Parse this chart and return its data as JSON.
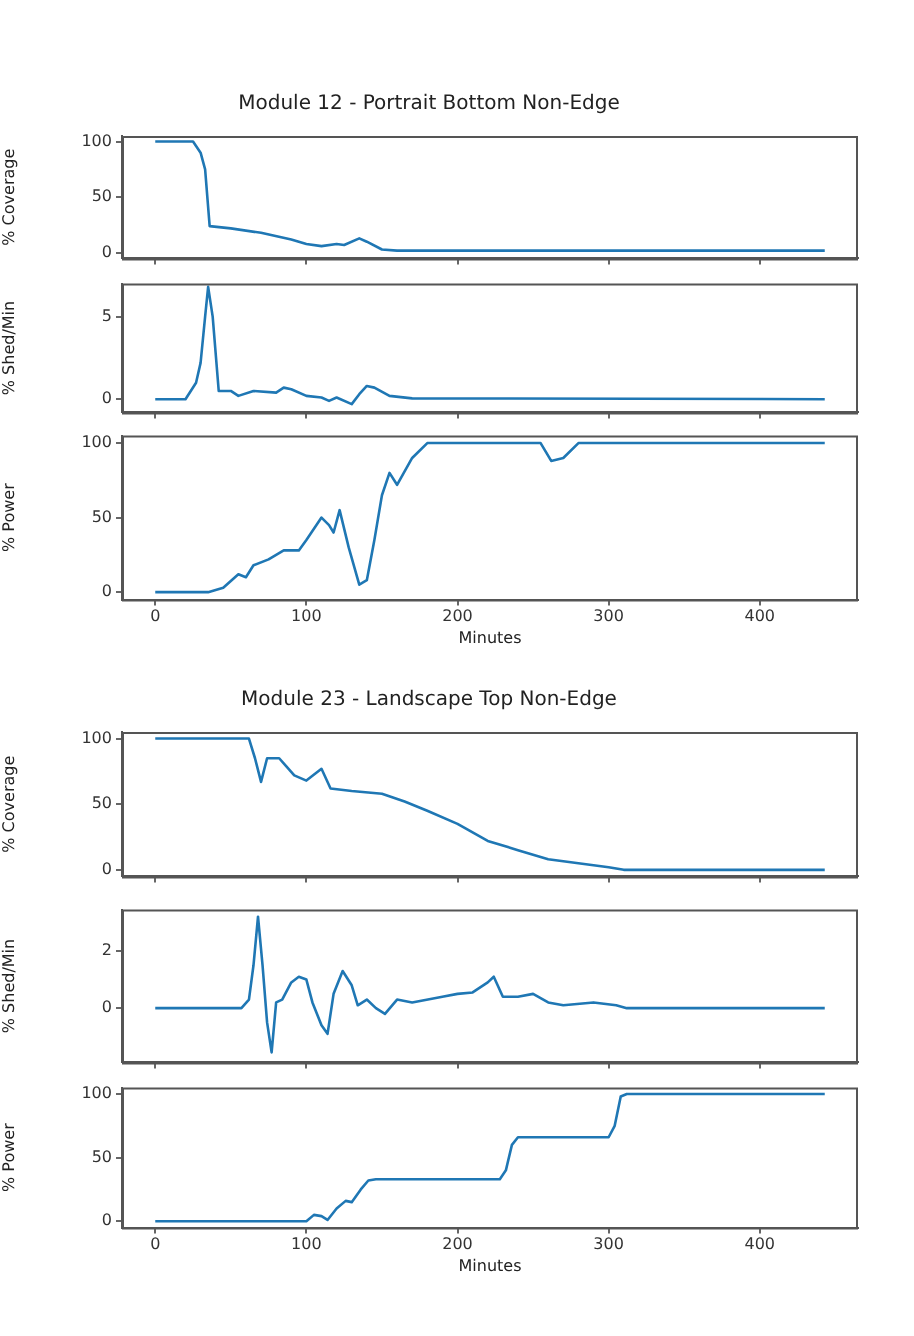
{
  "chart_data": [
    {
      "type": "line",
      "title": "Module 12 - Portrait Bottom Non-Edge",
      "ylabel": "% Coverage",
      "color": "#1f77b4",
      "xlim": [
        -22,
        465
      ],
      "xticks": [
        0,
        100,
        200,
        300,
        400
      ],
      "ylim": [
        -5,
        105
      ],
      "yticks": [
        0,
        50,
        100
      ],
      "tick_labels": "y",
      "x": [
        0,
        25,
        30,
        33,
        36,
        50,
        70,
        90,
        100,
        110,
        120,
        125,
        135,
        140,
        150,
        160,
        200,
        300,
        443
      ],
      "values": [
        100,
        100,
        90,
        75,
        24,
        22,
        18,
        12,
        8,
        6,
        8,
        7,
        13,
        10,
        3,
        2,
        2,
        2,
        2
      ]
    },
    {
      "type": "line",
      "ylabel": "% Shed/Min",
      "color": "#1f77b4",
      "xlim": [
        -22,
        465
      ],
      "xticks": [
        0,
        100,
        200,
        300,
        400
      ],
      "ylim": [
        -0.8,
        7
      ],
      "yticks": [
        0,
        5
      ],
      "tick_labels": "y",
      "x": [
        0,
        20,
        27,
        30,
        33,
        35,
        38,
        42,
        50,
        55,
        65,
        80,
        85,
        90,
        100,
        110,
        115,
        120,
        130,
        135,
        140,
        145,
        155,
        170,
        443
      ],
      "values": [
        0,
        0,
        1,
        2.2,
        5,
        6.8,
        5,
        0.5,
        0.5,
        0.2,
        0.5,
        0.4,
        0.7,
        0.6,
        0.2,
        0.1,
        -0.1,
        0.1,
        -0.3,
        0.3,
        0.8,
        0.7,
        0.2,
        0.05,
        0
      ]
    },
    {
      "type": "line",
      "ylabel": "% Power",
      "xlabel": "Minutes",
      "color": "#1f77b4",
      "xlim": [
        -22,
        465
      ],
      "xticks": [
        0,
        100,
        200,
        300,
        400
      ],
      "ylim": [
        -5,
        105
      ],
      "yticks": [
        0,
        50,
        100
      ],
      "x": [
        0,
        35,
        45,
        55,
        60,
        65,
        75,
        85,
        95,
        100,
        110,
        115,
        118,
        122,
        128,
        135,
        140,
        145,
        150,
        155,
        160,
        170,
        180,
        255,
        262,
        270,
        280,
        443
      ],
      "values": [
        0,
        0,
        3,
        12,
        10,
        18,
        22,
        28,
        28,
        35,
        50,
        45,
        40,
        55,
        30,
        5,
        8,
        35,
        65,
        80,
        72,
        90,
        100,
        100,
        88,
        90,
        100,
        100
      ]
    },
    {
      "type": "line",
      "title": "Module 23 - Landscape Top Non-Edge",
      "ylabel": "% Coverage",
      "color": "#1f77b4",
      "xlim": [
        -22,
        465
      ],
      "xticks": [
        0,
        100,
        200,
        300,
        400
      ],
      "ylim": [
        -5,
        105
      ],
      "yticks": [
        0,
        50,
        100
      ],
      "tick_labels": "y",
      "x": [
        0,
        62,
        66,
        70,
        74,
        82,
        92,
        100,
        110,
        116,
        130,
        150,
        165,
        180,
        200,
        220,
        240,
        260,
        280,
        300,
        310,
        443
      ],
      "values": [
        100,
        100,
        85,
        67,
        85,
        85,
        72,
        68,
        77,
        62,
        60,
        58,
        52,
        45,
        35,
        22,
        15,
        8,
        5,
        2,
        0,
        0
      ]
    },
    {
      "type": "line",
      "ylabel": "% Shed/Min",
      "color": "#1f77b4",
      "xlim": [
        -22,
        465
      ],
      "xticks": [
        0,
        100,
        200,
        300,
        400
      ],
      "ylim": [
        -1.9,
        3.45
      ],
      "yticks": [
        0,
        2
      ],
      "tick_labels": "y",
      "x": [
        0,
        57,
        62,
        65,
        68,
        71,
        74,
        77,
        80,
        84,
        90,
        95,
        100,
        104,
        110,
        114,
        118,
        124,
        130,
        134,
        140,
        146,
        152,
        160,
        170,
        190,
        200,
        210,
        220,
        224,
        230,
        240,
        250,
        260,
        270,
        290,
        305,
        312,
        443
      ],
      "values": [
        0,
        0,
        0.3,
        1.5,
        3.2,
        1.5,
        -0.5,
        -1.55,
        0.2,
        0.3,
        0.9,
        1.1,
        1,
        0.2,
        -0.6,
        -0.9,
        0.5,
        1.3,
        0.8,
        0.1,
        0.3,
        0,
        -0.2,
        0.3,
        0.2,
        0.4,
        0.5,
        0.55,
        0.9,
        1.1,
        0.4,
        0.4,
        0.5,
        0.2,
        0.1,
        0.2,
        0.1,
        0,
        0
      ]
    },
    {
      "type": "line",
      "ylabel": "% Power",
      "xlabel": "Minutes",
      "color": "#1f77b4",
      "xlim": [
        -22,
        465
      ],
      "xticks": [
        0,
        100,
        200,
        300,
        400
      ],
      "ylim": [
        -5,
        105
      ],
      "yticks": [
        0,
        50,
        100
      ],
      "x": [
        0,
        100,
        105,
        110,
        114,
        120,
        126,
        130,
        136,
        141,
        146,
        228,
        232,
        236,
        240,
        300,
        304,
        308,
        312,
        443
      ],
      "values": [
        0,
        0,
        5,
        4,
        1,
        10,
        16,
        15,
        25,
        32,
        33,
        33,
        40,
        60,
        66,
        66,
        75,
        98,
        100,
        100
      ]
    }
  ]
}
